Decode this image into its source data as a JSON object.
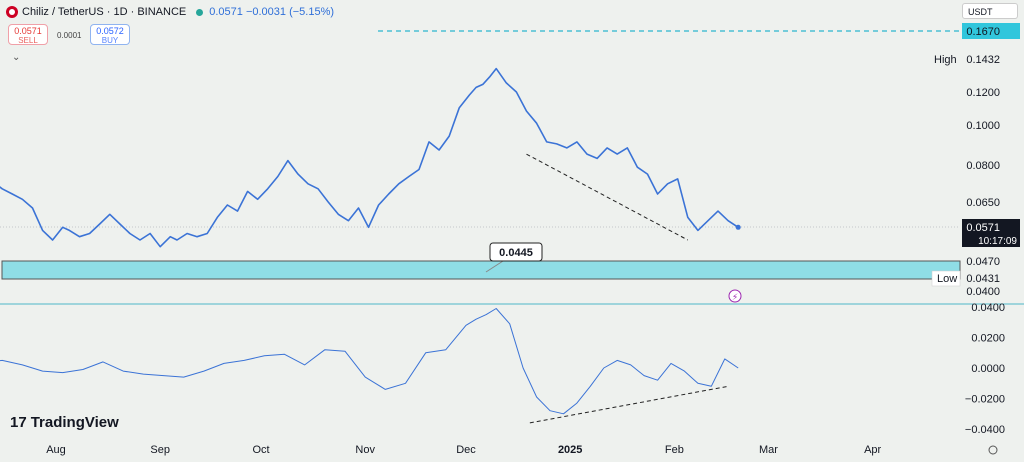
{
  "header": {
    "symbol": "Chiliz / TetherUS · 1D · BINANCE",
    "last_price": "0.0571",
    "change": "−0.0031 (−5.15%)",
    "sell_price": "0.0571",
    "sell_label": "SELL",
    "buy_price": "0.0572",
    "buy_label": "BUY",
    "spread": "0.0001",
    "currency": "USDT",
    "brand": "TradingView"
  },
  "colors": {
    "line": "#3b73d6",
    "zone_fill": "#8fdde6",
    "dashed_level": "#2bb7cf",
    "price_label_bg": "#131722",
    "teal_label_bg": "#31c6dc"
  },
  "chart_data": [
    {
      "type": "line",
      "name": "price",
      "ylim": [
        0.04,
        0.167
      ],
      "y_ticks": [
        "0.1432",
        "0.1200",
        "0.1000",
        "0.0800",
        "0.0650",
        "0.0470",
        "0.0431",
        "0.0400"
      ],
      "x_ticks": [
        "Aug",
        "Sep",
        "Oct",
        "Nov",
        "Dec",
        "2025",
        "Feb",
        "Mar",
        "Apr"
      ],
      "labels": {
        "high_label": "High",
        "high_value": "0.1432",
        "low_label": "Low",
        "low_value": "0.0431",
        "dashed_level_value": "0.1670",
        "current_price": "0.0571",
        "countdown": "10:17:09",
        "zone_callout": "0.0445",
        "zone_top": "0.0470",
        "zone_bottom": "0.0431"
      },
      "series": [
        {
          "x": [
            "2024-07-10",
            "2024-07-13",
            "2024-07-16",
            "2024-07-19",
            "2024-07-22",
            "2024-07-25",
            "2024-07-28",
            "2024-07-31",
            "2024-08-03",
            "2024-08-05",
            "2024-08-08",
            "2024-08-11",
            "2024-08-14",
            "2024-08-17",
            "2024-08-20",
            "2024-08-23",
            "2024-08-26",
            "2024-08-29",
            "2024-09-01",
            "2024-09-04",
            "2024-09-06",
            "2024-09-09",
            "2024-09-12",
            "2024-09-15",
            "2024-09-18",
            "2024-09-21",
            "2024-09-24",
            "2024-09-27",
            "2024-09-30",
            "2024-10-03",
            "2024-10-06",
            "2024-10-09",
            "2024-10-12",
            "2024-10-15",
            "2024-10-18",
            "2024-10-21",
            "2024-10-24",
            "2024-10-27",
            "2024-10-30",
            "2024-11-02",
            "2024-11-05",
            "2024-11-08",
            "2024-11-11",
            "2024-11-14",
            "2024-11-17",
            "2024-11-20",
            "2024-11-23",
            "2024-11-26",
            "2024-11-29",
            "2024-12-02",
            "2024-12-04",
            "2024-12-06",
            "2024-12-08",
            "2024-12-10",
            "2024-12-13",
            "2024-12-16",
            "2024-12-19",
            "2024-12-22",
            "2024-12-25",
            "2024-12-28",
            "2024-12-31",
            "2025-01-03",
            "2025-01-06",
            "2025-01-09",
            "2025-01-12",
            "2025-01-15",
            "2025-01-18",
            "2025-01-21",
            "2025-01-24",
            "2025-01-27",
            "2025-01-30",
            "2025-02-02",
            "2025-02-05",
            "2025-02-08",
            "2025-02-11",
            "2025-02-14",
            "2025-02-17",
            "2025-02-20"
          ],
          "y": [
            0.072,
            0.073,
            0.07,
            0.068,
            0.066,
            0.063,
            0.056,
            0.053,
            0.057,
            0.056,
            0.054,
            0.055,
            0.058,
            0.061,
            0.058,
            0.055,
            0.053,
            0.055,
            0.051,
            0.054,
            0.053,
            0.055,
            0.054,
            0.055,
            0.06,
            0.064,
            0.062,
            0.069,
            0.066,
            0.07,
            0.075,
            0.082,
            0.076,
            0.072,
            0.07,
            0.065,
            0.061,
            0.059,
            0.063,
            0.057,
            0.064,
            0.068,
            0.072,
            0.075,
            0.078,
            0.091,
            0.087,
            0.094,
            0.11,
            0.118,
            0.123,
            0.125,
            0.13,
            0.136,
            0.126,
            0.12,
            0.108,
            0.101,
            0.091,
            0.09,
            0.088,
            0.091,
            0.085,
            0.083,
            0.088,
            0.085,
            0.088,
            0.079,
            0.076,
            0.068,
            0.072,
            0.074,
            0.06,
            0.056,
            0.059,
            0.062,
            0.059,
            0.057
          ],
          "name": ""
        }
      ],
      "annotations": {
        "trendline_from": {
          "x": "2024-12-19",
          "y": 0.085
        },
        "trendline_to": {
          "x": "2025-02-05",
          "y": 0.053
        }
      }
    },
    {
      "type": "line",
      "name": "oscillator",
      "ylim": [
        -0.04,
        0.04
      ],
      "y_ticks": [
        "0.0400",
        "0.0200",
        "0.0000",
        "−0.0200",
        "−0.0400"
      ],
      "series": [
        {
          "x": [
            "2024-07-10",
            "2024-07-16",
            "2024-07-22",
            "2024-07-28",
            "2024-08-03",
            "2024-08-09",
            "2024-08-15",
            "2024-08-21",
            "2024-08-27",
            "2024-09-02",
            "2024-09-08",
            "2024-09-14",
            "2024-09-20",
            "2024-09-26",
            "2024-10-02",
            "2024-10-08",
            "2024-10-14",
            "2024-10-20",
            "2024-10-26",
            "2024-11-01",
            "2024-11-07",
            "2024-11-13",
            "2024-11-19",
            "2024-11-25",
            "2024-12-01",
            "2024-12-04",
            "2024-12-07",
            "2024-12-10",
            "2024-12-14",
            "2024-12-18",
            "2024-12-22",
            "2024-12-26",
            "2024-12-30",
            "2025-01-03",
            "2025-01-07",
            "2025-01-11",
            "2025-01-15",
            "2025-01-19",
            "2025-01-23",
            "2025-01-27",
            "2025-01-31",
            "2025-02-04",
            "2025-02-08",
            "2025-02-12",
            "2025-02-16",
            "2025-02-20"
          ],
          "y": [
            0.004,
            0.005,
            0.002,
            -0.002,
            -0.003,
            -0.001,
            0.004,
            -0.002,
            -0.004,
            -0.005,
            -0.006,
            -0.002,
            0.003,
            0.005,
            0.008,
            0.009,
            0.002,
            0.012,
            0.011,
            -0.006,
            -0.014,
            -0.01,
            0.01,
            0.012,
            0.028,
            0.032,
            0.035,
            0.039,
            0.029,
            0.0,
            -0.019,
            -0.028,
            -0.03,
            -0.023,
            -0.012,
            0.0,
            0.005,
            0.002,
            -0.005,
            -0.008,
            0.003,
            -0.002,
            -0.01,
            -0.012,
            0.006,
            0.0
          ],
          "name": ""
        }
      ],
      "annotations": {
        "trendline_from": {
          "x": "2024-12-20",
          "y": -0.036
        },
        "trendline_to": {
          "x": "2025-02-17",
          "y": -0.012
        }
      }
    }
  ]
}
